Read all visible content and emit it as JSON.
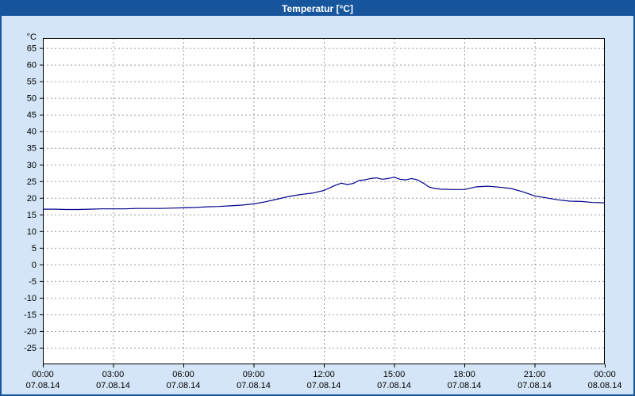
{
  "window": {
    "title": "Temperatur [°C]"
  },
  "colors": {
    "title_bar_bg": "#17569d",
    "title_bar_fg": "#ffffff",
    "window_bg": "#d3e5f6",
    "plot_bg": "#ffffff",
    "plot_border": "#000000",
    "grid": "#9a9a9a",
    "line": "#00008b",
    "tick_label": "#000000"
  },
  "chart_data": {
    "type": "line",
    "title": "Temperatur [°C]",
    "xlabel": "",
    "ylabel": "°C",
    "xlim": [
      0,
      24
    ],
    "ylim": [
      -30,
      68
    ],
    "grid": true,
    "legend_position": "none",
    "y_ticks": [
      65,
      60,
      55,
      50,
      45,
      40,
      35,
      30,
      25,
      20,
      15,
      10,
      5,
      0,
      -5,
      -10,
      -15,
      -20,
      -25
    ],
    "x_ticks": [
      {
        "hour": 0,
        "time": "00:00",
        "date": "07.08.14"
      },
      {
        "hour": 3,
        "time": "03:00",
        "date": "07.08.14"
      },
      {
        "hour": 6,
        "time": "06:00",
        "date": "07.08.14"
      },
      {
        "hour": 9,
        "time": "09:00",
        "date": "07.08.14"
      },
      {
        "hour": 12,
        "time": "12:00",
        "date": "07.08.14"
      },
      {
        "hour": 15,
        "time": "15:00",
        "date": "07.08.14"
      },
      {
        "hour": 18,
        "time": "18:00",
        "date": "07.08.14"
      },
      {
        "hour": 21,
        "time": "21:00",
        "date": "07.08.14"
      },
      {
        "hour": 24,
        "time": "00:00",
        "date": "08.08.14"
      }
    ],
    "series": [
      {
        "name": "Temperatur",
        "points": [
          [
            0,
            16.6
          ],
          [
            0.5,
            16.6
          ],
          [
            1,
            16.5
          ],
          [
            1.5,
            16.5
          ],
          [
            2,
            16.6
          ],
          [
            2.5,
            16.7
          ],
          [
            3,
            16.7
          ],
          [
            3.5,
            16.7
          ],
          [
            4,
            16.8
          ],
          [
            4.5,
            16.8
          ],
          [
            5,
            16.8
          ],
          [
            5.5,
            16.9
          ],
          [
            6,
            17.0
          ],
          [
            6.5,
            17.1
          ],
          [
            7,
            17.3
          ],
          [
            7.5,
            17.4
          ],
          [
            8,
            17.6
          ],
          [
            8.5,
            17.8
          ],
          [
            9,
            18.2
          ],
          [
            9.5,
            18.8
          ],
          [
            10,
            19.6
          ],
          [
            10.5,
            20.4
          ],
          [
            11,
            21.0
          ],
          [
            11.5,
            21.4
          ],
          [
            12,
            22.2
          ],
          [
            12.25,
            23.0
          ],
          [
            12.5,
            23.8
          ],
          [
            12.75,
            24.4
          ],
          [
            13,
            24.0
          ],
          [
            13.25,
            24.3
          ],
          [
            13.5,
            25.2
          ],
          [
            13.75,
            25.4
          ],
          [
            14,
            25.8
          ],
          [
            14.25,
            26.0
          ],
          [
            14.5,
            25.6
          ],
          [
            14.75,
            25.8
          ],
          [
            15,
            26.2
          ],
          [
            15.25,
            25.6
          ],
          [
            15.5,
            25.4
          ],
          [
            15.75,
            25.8
          ],
          [
            16,
            25.4
          ],
          [
            16.25,
            24.4
          ],
          [
            16.5,
            23.2
          ],
          [
            16.75,
            22.8
          ],
          [
            17,
            22.6
          ],
          [
            17.5,
            22.5
          ],
          [
            18,
            22.5
          ],
          [
            18.5,
            23.3
          ],
          [
            19,
            23.5
          ],
          [
            19.5,
            23.2
          ],
          [
            20,
            22.8
          ],
          [
            20.5,
            21.8
          ],
          [
            21,
            20.6
          ],
          [
            21.5,
            20.0
          ],
          [
            22,
            19.4
          ],
          [
            22.5,
            19.0
          ],
          [
            23,
            18.9
          ],
          [
            23.5,
            18.6
          ],
          [
            24,
            18.5
          ]
        ]
      }
    ]
  }
}
